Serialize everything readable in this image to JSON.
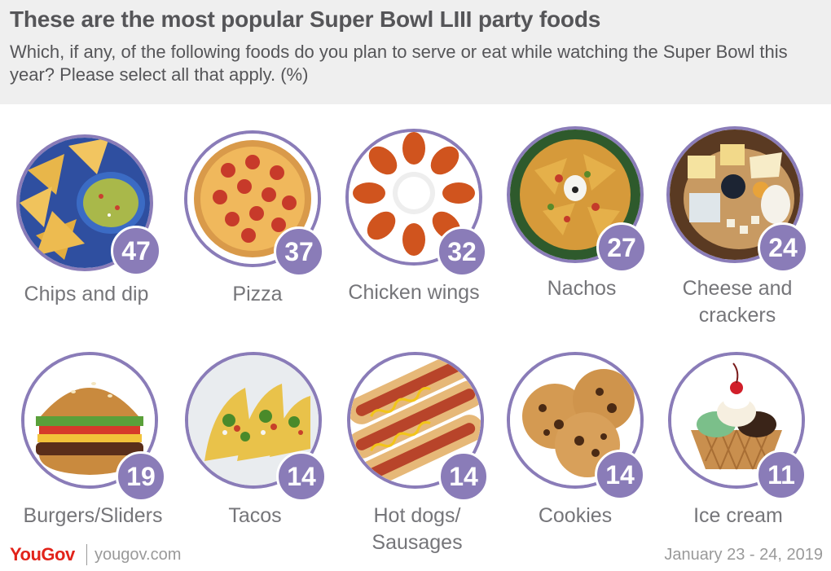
{
  "header": {
    "title": "These are the most popular Super Bowl LIII party foods",
    "subtitle": "Which, if any, of the following foods do you plan to serve or eat while watching the Super Bowl this year? Please select all that apply. (%)"
  },
  "colors": {
    "accent": "#8a7cb8",
    "text": "#555558",
    "brand": "#e2231a"
  },
  "chart_data": {
    "type": "bar",
    "categories": [
      "Chips and dip",
      "Pizza",
      "Chicken wings",
      "Nachos",
      "Cheese and crackers",
      "Burgers/Sliders",
      "Tacos",
      "Hot dogs/ Sausages",
      "Cookies",
      "Ice cream"
    ],
    "values": [
      47,
      37,
      32,
      27,
      24,
      19,
      14,
      14,
      14,
      11
    ],
    "unit": "%"
  },
  "items": [
    {
      "label": "Chips and dip",
      "value": "47",
      "icon": "chips-and-dip-icon"
    },
    {
      "label": "Pizza",
      "value": "37",
      "icon": "pizza-icon"
    },
    {
      "label": "Chicken wings",
      "value": "32",
      "icon": "chicken-wings-icon"
    },
    {
      "label": "Nachos",
      "value": "27",
      "icon": "nachos-icon"
    },
    {
      "label": "Cheese and crackers",
      "value": "24",
      "icon": "cheese-and-crackers-icon"
    },
    {
      "label": "Burgers/Sliders",
      "value": "19",
      "icon": "burger-icon"
    },
    {
      "label": "Tacos",
      "value": "14",
      "icon": "tacos-icon"
    },
    {
      "label": "Hot dogs/ Sausages",
      "value": "14",
      "icon": "hot-dogs-icon"
    },
    {
      "label": "Cookies",
      "value": "14",
      "icon": "cookies-icon"
    },
    {
      "label": "Ice cream",
      "value": "11",
      "icon": "ice-cream-icon"
    }
  ],
  "footer": {
    "brand": "YouGov",
    "url": "yougov.com",
    "date": "January 23 - 24, 2019"
  }
}
